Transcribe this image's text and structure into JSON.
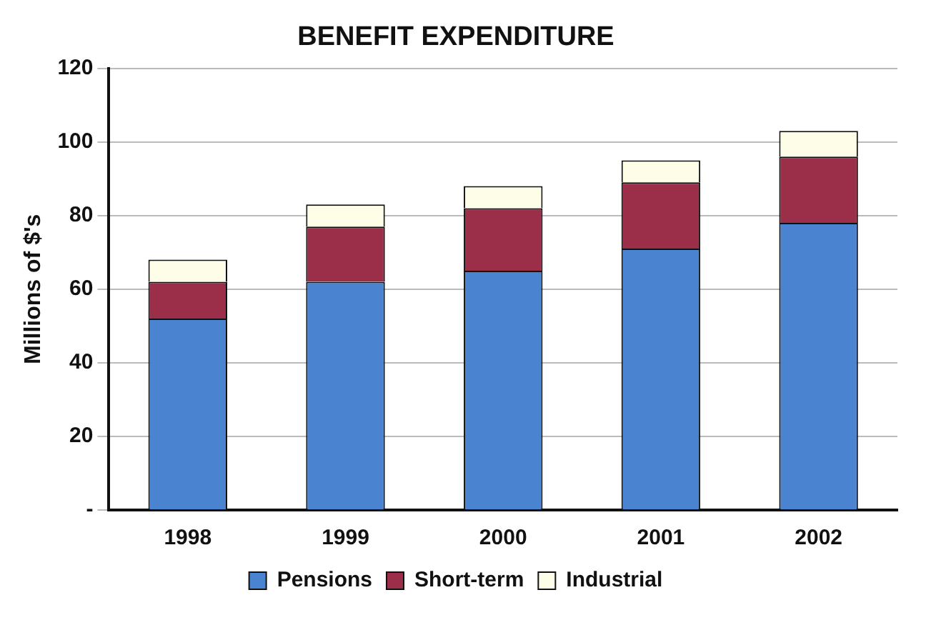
{
  "chart_data": {
    "type": "bar",
    "title": "BENEFIT EXPENDITURE",
    "ylabel": "Millions of $'s",
    "categories": [
      "1998",
      "1999",
      "2000",
      "2001",
      "2002"
    ],
    "series": [
      {
        "name": "Pensions",
        "color": "#4a84d0",
        "values": [
          52,
          62,
          65,
          71,
          78
        ]
      },
      {
        "name": "Short-term",
        "color": "#9b2f4a",
        "values": [
          10,
          15,
          17,
          18,
          18
        ]
      },
      {
        "name": "Industrial",
        "color": "#fdfde8",
        "values": [
          6,
          6,
          6,
          6,
          7
        ]
      }
    ],
    "stacked": true,
    "ylim": [
      0,
      120
    ],
    "yticks": [
      {
        "value": 0,
        "label": "-"
      },
      20,
      40,
      60,
      80,
      100,
      120
    ],
    "grid": "y",
    "legend": "bottom"
  }
}
